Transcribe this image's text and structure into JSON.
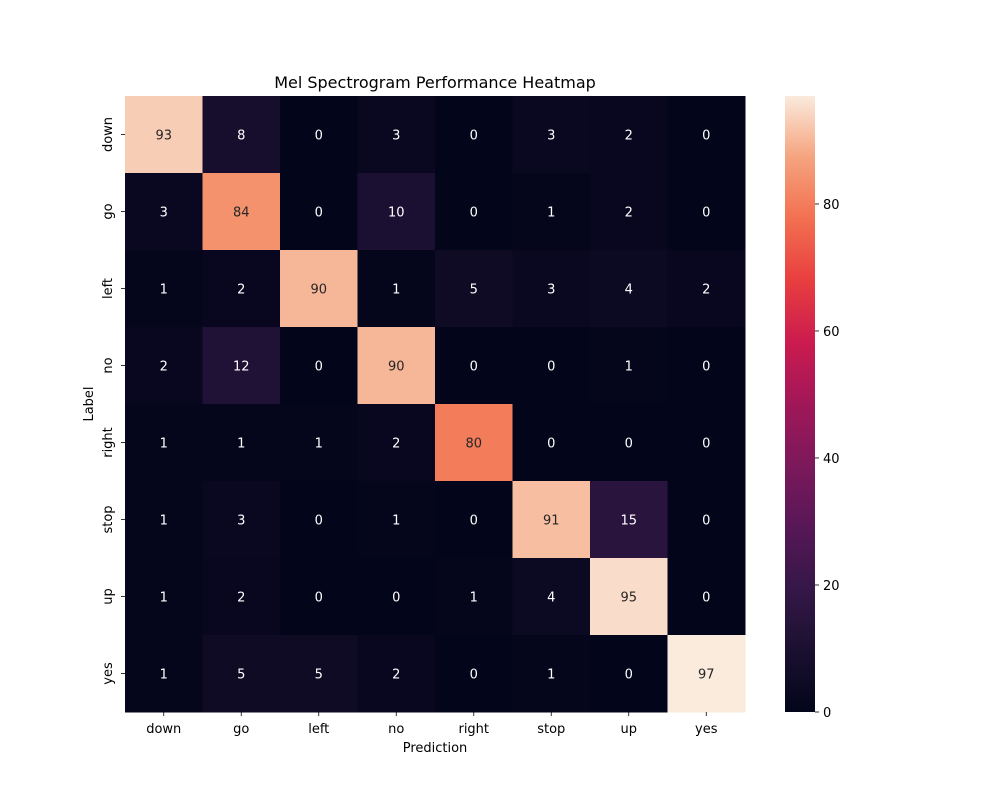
{
  "chart_data": {
    "type": "heatmap",
    "title": "Mel Spectrogram Performance Heatmap",
    "xlabel": "Prediction",
    "ylabel": "Label",
    "x_categories": [
      "down",
      "go",
      "left",
      "no",
      "right",
      "stop",
      "up",
      "yes"
    ],
    "y_categories": [
      "down",
      "go",
      "left",
      "no",
      "right",
      "stop",
      "up",
      "yes"
    ],
    "values": [
      [
        93,
        8,
        0,
        3,
        0,
        3,
        2,
        0
      ],
      [
        3,
        84,
        0,
        10,
        0,
        1,
        2,
        0
      ],
      [
        1,
        2,
        90,
        1,
        5,
        3,
        4,
        2
      ],
      [
        2,
        12,
        0,
        90,
        0,
        0,
        1,
        0
      ],
      [
        1,
        1,
        1,
        2,
        80,
        0,
        0,
        0
      ],
      [
        1,
        3,
        0,
        1,
        0,
        91,
        15,
        0
      ],
      [
        1,
        2,
        0,
        0,
        1,
        4,
        95,
        0
      ],
      [
        1,
        5,
        5,
        2,
        0,
        1,
        0,
        97
      ]
    ],
    "colorbar": {
      "range": [
        0,
        97
      ],
      "ticks": [
        0,
        20,
        40,
        60,
        80
      ],
      "colormap": "rocket"
    }
  }
}
